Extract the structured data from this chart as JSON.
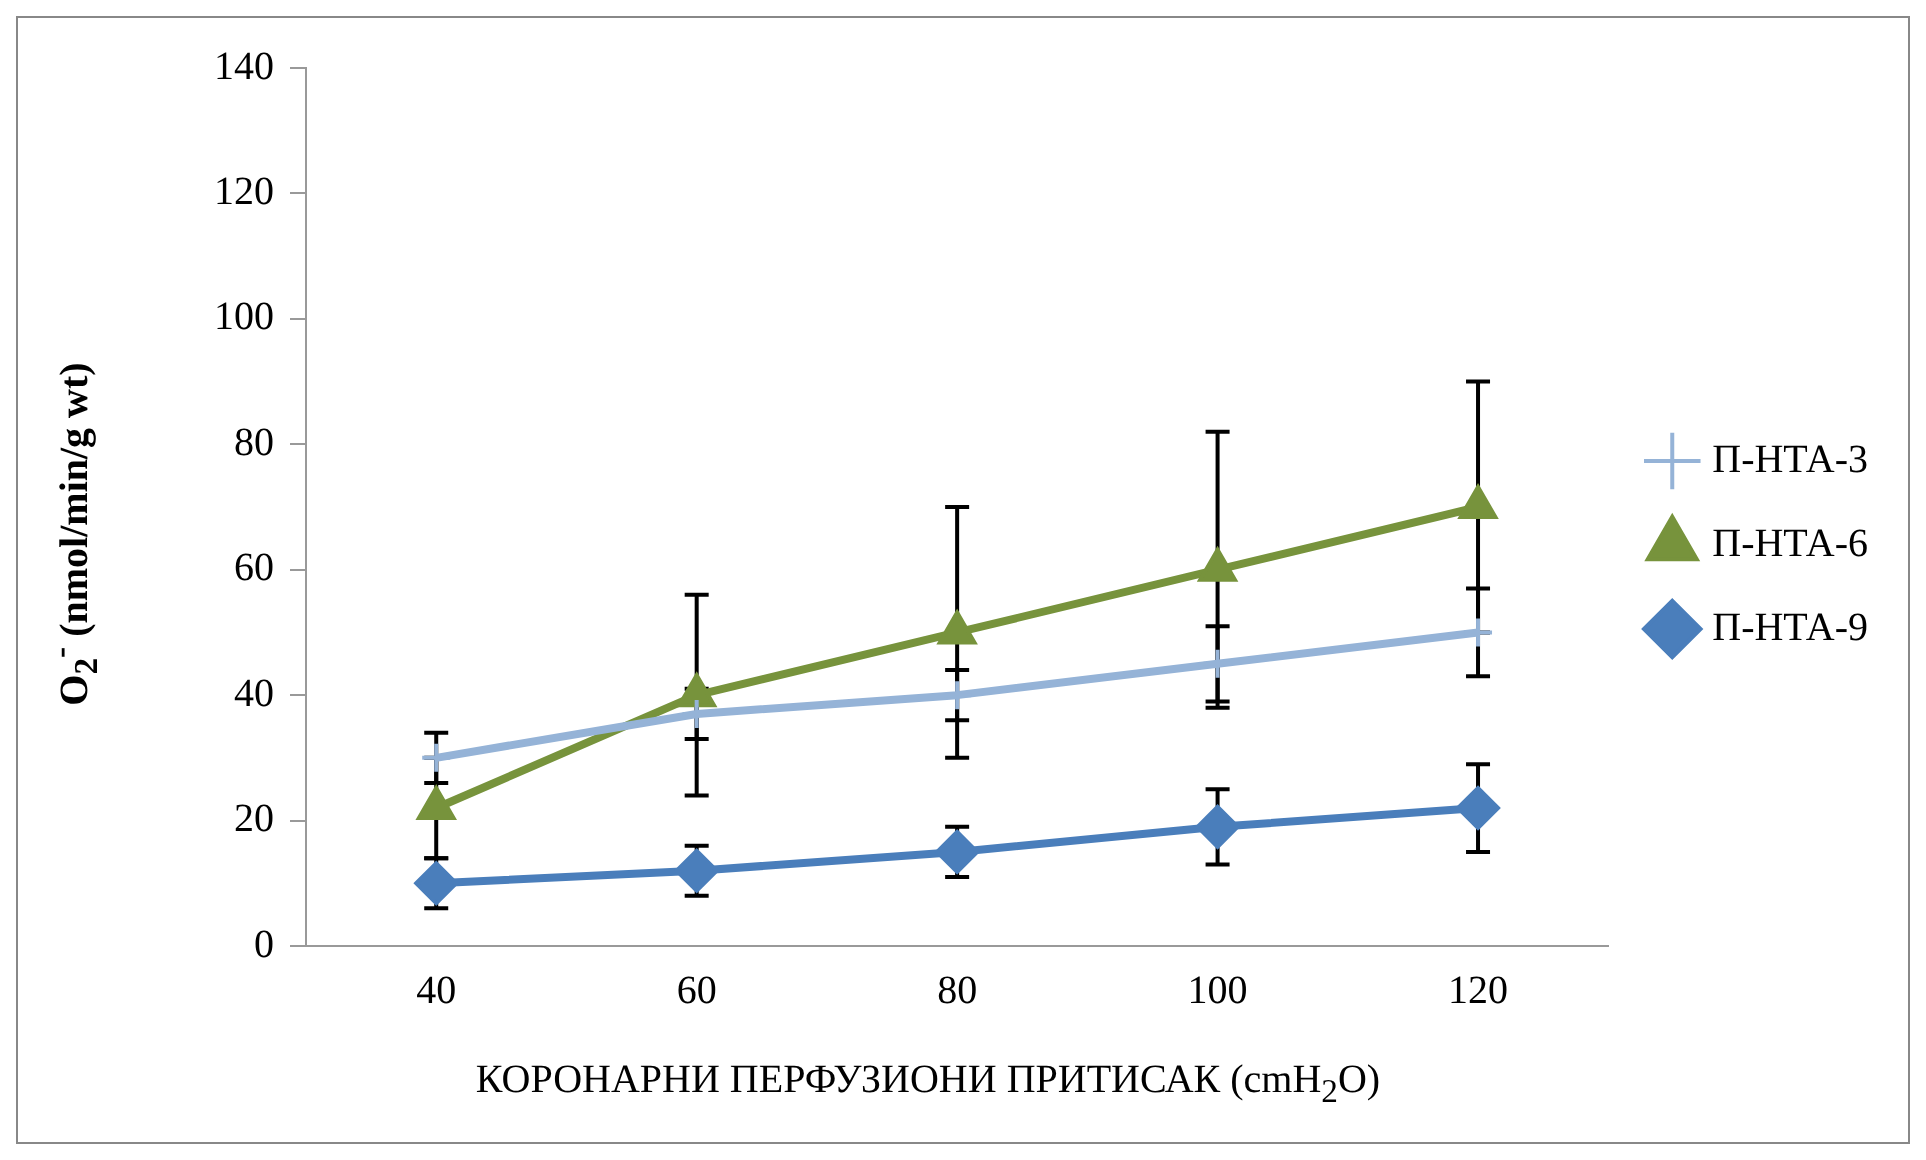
{
  "chart_data": {
    "type": "line",
    "xlabel": "КОРОНАРНИ ПЕРФУЗИОНИ ПРИТИСАК (cmH$_{2}$O)",
    "ylabel": "O$_{2}$$^{-}$ (nmol/min/g wt)",
    "categories": [
      "40",
      "60",
      "80",
      "100",
      "120"
    ],
    "ylim": [
      0,
      140
    ],
    "yticks": [
      0,
      20,
      40,
      60,
      80,
      100,
      120,
      140
    ],
    "grid": false,
    "legend": "right",
    "line_style": "solid",
    "series": [
      {
        "name": "П-НТА-3",
        "color": "#95b3d7",
        "marker": "cross",
        "values": [
          30,
          37,
          40,
          45,
          50
        ],
        "errors": [
          4,
          4,
          4,
          6,
          7
        ]
      },
      {
        "name": "П-НТА-6",
        "color": "#77933c",
        "marker": "triangle",
        "values": [
          22,
          40,
          50,
          60,
          70
        ],
        "errors": [
          8,
          16,
          20,
          22,
          20
        ]
      },
      {
        "name": "П-НТА-9",
        "color": "#4a7ebb",
        "marker": "diamond",
        "values": [
          10,
          12,
          15,
          19,
          22
        ],
        "errors": [
          4,
          4,
          4,
          6,
          7
        ]
      }
    ]
  }
}
